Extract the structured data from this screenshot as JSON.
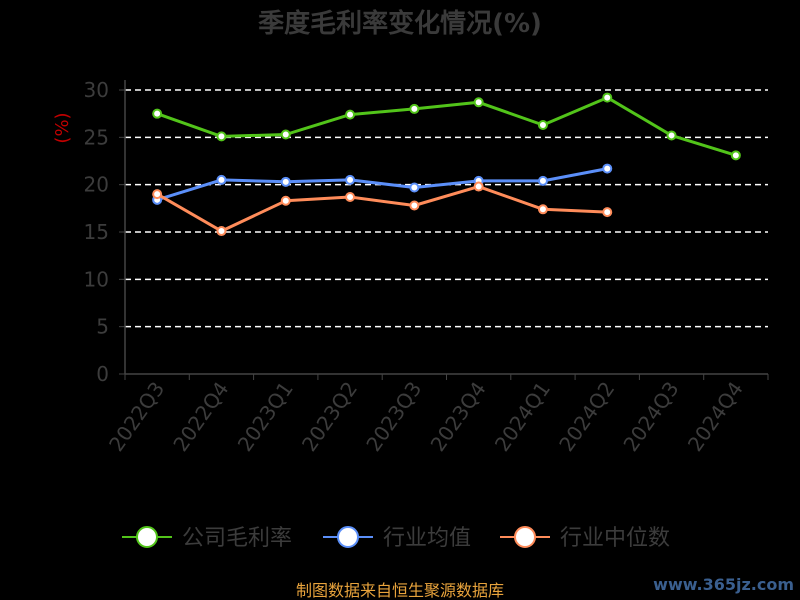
{
  "chart_data": {
    "type": "line",
    "title": "季度毛利率变化情况(%)",
    "ylabel": "(%)",
    "categories": [
      "2022Q3",
      "2022Q4",
      "2023Q1",
      "2023Q2",
      "2023Q3",
      "2023Q4",
      "2024Q1",
      "2024Q2",
      "2024Q3",
      "2024Q4"
    ],
    "ylim": [
      0,
      30
    ],
    "yticks": [
      0,
      5,
      10,
      15,
      20,
      25,
      30
    ],
    "grid": true,
    "legend_position": "bottom",
    "series": [
      {
        "name": "公司毛利率",
        "color": "#52c41a",
        "values": [
          27.5,
          25.1,
          25.3,
          27.4,
          28.0,
          28.7,
          26.3,
          29.2,
          25.2,
          23.1
        ]
      },
      {
        "name": "行业均值",
        "color": "#5b8ff9",
        "values": [
          18.4,
          20.5,
          20.3,
          20.5,
          19.7,
          20.4,
          20.4,
          21.7,
          null,
          null
        ]
      },
      {
        "name": "行业中位数",
        "color": "#ff8c5a",
        "values": [
          19.0,
          15.1,
          18.3,
          18.7,
          17.8,
          19.8,
          17.4,
          17.1,
          null,
          null
        ]
      }
    ]
  },
  "footer": {
    "source": "制图数据来自恒生聚源数据库",
    "watermark": "www.365jz.com"
  }
}
